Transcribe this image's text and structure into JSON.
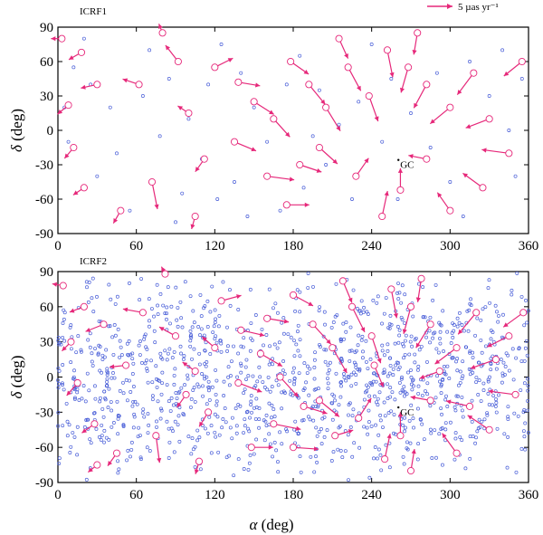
{
  "colors": {
    "vector": "#e6287a",
    "source": "#4a5fd8",
    "axis": "#000000"
  },
  "legend": {
    "label": "5 µas yr⁻¹"
  },
  "x_axis": {
    "title_symbol": "α",
    "title_unit": " (deg)"
  },
  "y_axis": {
    "title_symbol": "δ",
    "title_unit": " (deg)"
  },
  "gc_label": "GC",
  "chart_data": [
    {
      "type": "scatter",
      "title": "ICRF1",
      "xlabel": "α (deg)",
      "ylabel": "δ (deg)",
      "xlim": [
        0,
        360
      ],
      "ylim": [
        -90,
        90
      ],
      "xticks": [
        0,
        60,
        120,
        180,
        240,
        300,
        360
      ],
      "yticks": [
        90,
        60,
        30,
        0,
        -30,
        -60,
        -90
      ],
      "annotations": [
        {
          "text": "GC",
          "x": 266,
          "y": -29
        }
      ],
      "sources": [
        [
          12,
          55
        ],
        [
          25,
          40
        ],
        [
          40,
          20
        ],
        [
          8,
          -10
        ],
        [
          30,
          -40
        ],
        [
          55,
          -70
        ],
        [
          70,
          70
        ],
        [
          85,
          45
        ],
        [
          100,
          10
        ],
        [
          110,
          -25
        ],
        [
          95,
          -55
        ],
        [
          125,
          75
        ],
        [
          140,
          50
        ],
        [
          150,
          20
        ],
        [
          160,
          -10
        ],
        [
          135,
          -45
        ],
        [
          170,
          -70
        ],
        [
          185,
          65
        ],
        [
          200,
          35
        ],
        [
          215,
          5
        ],
        [
          205,
          -30
        ],
        [
          225,
          -60
        ],
        [
          240,
          75
        ],
        [
          255,
          45
        ],
        [
          270,
          15
        ],
        [
          285,
          -15
        ],
        [
          300,
          -45
        ],
        [
          315,
          60
        ],
        [
          330,
          30
        ],
        [
          345,
          0
        ],
        [
          350,
          -40
        ],
        [
          20,
          80
        ],
        [
          45,
          -20
        ],
        [
          65,
          30
        ],
        [
          90,
          -80
        ],
        [
          115,
          40
        ],
        [
          145,
          -75
        ],
        [
          175,
          40
        ],
        [
          195,
          -5
        ],
        [
          230,
          25
        ],
        [
          260,
          -60
        ],
        [
          290,
          50
        ],
        [
          310,
          -75
        ],
        [
          340,
          70
        ],
        [
          355,
          45
        ],
        [
          5,
          20
        ],
        [
          78,
          -5
        ],
        [
          122,
          -60
        ],
        [
          188,
          -50
        ],
        [
          248,
          -10
        ]
      ],
      "vectors": [
        {
          "x": 3,
          "y": 80,
          "dx": -12,
          "dy": 0
        },
        {
          "x": 18,
          "y": 68,
          "dx": -14,
          "dy": -8
        },
        {
          "x": 30,
          "y": 40,
          "dx": -18,
          "dy": -4
        },
        {
          "x": 8,
          "y": 22,
          "dx": -12,
          "dy": -10
        },
        {
          "x": 12,
          "y": -15,
          "dx": -10,
          "dy": -12
        },
        {
          "x": 20,
          "y": -50,
          "dx": -12,
          "dy": -8
        },
        {
          "x": 48,
          "y": -70,
          "dx": -8,
          "dy": -14
        },
        {
          "x": 72,
          "y": -45,
          "dx": 6,
          "dy": -30
        },
        {
          "x": 62,
          "y": 40,
          "dx": -18,
          "dy": 6
        },
        {
          "x": 92,
          "y": 60,
          "dx": -14,
          "dy": 18
        },
        {
          "x": 100,
          "y": 15,
          "dx": -12,
          "dy": 8
        },
        {
          "x": 112,
          "y": -25,
          "dx": -10,
          "dy": -14
        },
        {
          "x": 120,
          "y": 55,
          "dx": 20,
          "dy": 10
        },
        {
          "x": 138,
          "y": 42,
          "dx": 24,
          "dy": -4
        },
        {
          "x": 150,
          "y": 25,
          "dx": 22,
          "dy": -14
        },
        {
          "x": 165,
          "y": 10,
          "dx": 18,
          "dy": -20
        },
        {
          "x": 178,
          "y": 60,
          "dx": 20,
          "dy": -14
        },
        {
          "x": 192,
          "y": 40,
          "dx": 18,
          "dy": -22
        },
        {
          "x": 205,
          "y": 20,
          "dx": 16,
          "dy": -26
        },
        {
          "x": 160,
          "y": -40,
          "dx": 30,
          "dy": -4
        },
        {
          "x": 175,
          "y": -65,
          "dx": 25,
          "dy": 0
        },
        {
          "x": 200,
          "y": -15,
          "dx": 20,
          "dy": -18
        },
        {
          "x": 222,
          "y": 55,
          "dx": 14,
          "dy": -26
        },
        {
          "x": 238,
          "y": 30,
          "dx": 10,
          "dy": -28
        },
        {
          "x": 252,
          "y": 70,
          "dx": 6,
          "dy": -30
        },
        {
          "x": 268,
          "y": 55,
          "dx": -8,
          "dy": -28
        },
        {
          "x": 282,
          "y": 40,
          "dx": -14,
          "dy": -26
        },
        {
          "x": 300,
          "y": 20,
          "dx": -22,
          "dy": -18
        },
        {
          "x": 318,
          "y": 50,
          "dx": -18,
          "dy": -24
        },
        {
          "x": 330,
          "y": 10,
          "dx": -26,
          "dy": -10
        },
        {
          "x": 345,
          "y": -20,
          "dx": -30,
          "dy": 4
        },
        {
          "x": 325,
          "y": -50,
          "dx": -22,
          "dy": 16
        },
        {
          "x": 300,
          "y": -70,
          "dx": -14,
          "dy": 20
        },
        {
          "x": 282,
          "y": -25,
          "dx": -20,
          "dy": 4
        },
        {
          "x": 248,
          "y": -75,
          "dx": 6,
          "dy": 28
        },
        {
          "x": 262,
          "y": -52,
          "dx": 0,
          "dy": 24
        },
        {
          "x": 228,
          "y": -40,
          "dx": 14,
          "dy": 20
        },
        {
          "x": 215,
          "y": 80,
          "dx": 10,
          "dy": -22
        },
        {
          "x": 275,
          "y": 85,
          "dx": -4,
          "dy": -24
        },
        {
          "x": 355,
          "y": 60,
          "dx": -20,
          "dy": -16
        },
        {
          "x": 80,
          "y": 85,
          "dx": -4,
          "dy": 10
        },
        {
          "x": 105,
          "y": -75,
          "dx": -4,
          "dy": -14
        },
        {
          "x": 135,
          "y": -10,
          "dx": 24,
          "dy": -10
        },
        {
          "x": 185,
          "y": -30,
          "dx": 24,
          "dy": -8
        }
      ]
    },
    {
      "type": "scatter",
      "title": "ICRF2",
      "xlabel": "α (deg)",
      "ylabel": "δ (deg)",
      "xlim": [
        0,
        360
      ],
      "ylim": [
        -90,
        90
      ],
      "xticks": [
        0,
        60,
        120,
        180,
        240,
        300,
        360
      ],
      "yticks": [
        90,
        60,
        30,
        0,
        -30,
        -60,
        -90
      ],
      "annotations": [
        {
          "text": "GC",
          "x": 266,
          "y": -29
        }
      ],
      "sources_count": 1200,
      "vectors": [
        {
          "x": 4,
          "y": 78,
          "dx": -12,
          "dy": 2
        },
        {
          "x": 20,
          "y": 60,
          "dx": -16,
          "dy": -6
        },
        {
          "x": 35,
          "y": 45,
          "dx": -20,
          "dy": -8
        },
        {
          "x": 10,
          "y": 30,
          "dx": -10,
          "dy": -10
        },
        {
          "x": 15,
          "y": -5,
          "dx": -12,
          "dy": -14
        },
        {
          "x": 28,
          "y": -40,
          "dx": -14,
          "dy": -10
        },
        {
          "x": 45,
          "y": -65,
          "dx": -10,
          "dy": -14
        },
        {
          "x": 75,
          "y": -50,
          "dx": 4,
          "dy": -30
        },
        {
          "x": 65,
          "y": 55,
          "dx": -22,
          "dy": 4
        },
        {
          "x": 90,
          "y": 35,
          "dx": -18,
          "dy": 10
        },
        {
          "x": 105,
          "y": 5,
          "dx": -14,
          "dy": 10
        },
        {
          "x": 115,
          "y": -30,
          "dx": -10,
          "dy": -16
        },
        {
          "x": 125,
          "y": 65,
          "dx": 22,
          "dy": 6
        },
        {
          "x": 140,
          "y": 40,
          "dx": 26,
          "dy": -6
        },
        {
          "x": 155,
          "y": 20,
          "dx": 24,
          "dy": -14
        },
        {
          "x": 170,
          "y": 0,
          "dx": 20,
          "dy": -22
        },
        {
          "x": 180,
          "y": 70,
          "dx": 22,
          "dy": -12
        },
        {
          "x": 195,
          "y": 45,
          "dx": 20,
          "dy": -22
        },
        {
          "x": 210,
          "y": 25,
          "dx": 16,
          "dy": -28
        },
        {
          "x": 165,
          "y": -40,
          "dx": 30,
          "dy": -6
        },
        {
          "x": 180,
          "y": -60,
          "dx": 28,
          "dy": -2
        },
        {
          "x": 200,
          "y": -20,
          "dx": 22,
          "dy": -18
        },
        {
          "x": 225,
          "y": 60,
          "dx": 14,
          "dy": -28
        },
        {
          "x": 240,
          "y": 35,
          "dx": 10,
          "dy": -30
        },
        {
          "x": 255,
          "y": 75,
          "dx": 6,
          "dy": -32
        },
        {
          "x": 270,
          "y": 60,
          "dx": -8,
          "dy": -30
        },
        {
          "x": 285,
          "y": 45,
          "dx": -16,
          "dy": -26
        },
        {
          "x": 305,
          "y": 25,
          "dx": -24,
          "dy": -18
        },
        {
          "x": 320,
          "y": 55,
          "dx": -20,
          "dy": -24
        },
        {
          "x": 335,
          "y": 15,
          "dx": -28,
          "dy": -10
        },
        {
          "x": 350,
          "y": -15,
          "dx": -30,
          "dy": 4
        },
        {
          "x": 330,
          "y": -45,
          "dx": -24,
          "dy": 16
        },
        {
          "x": 305,
          "y": -65,
          "dx": -16,
          "dy": 22
        },
        {
          "x": 285,
          "y": -20,
          "dx": -22,
          "dy": 4
        },
        {
          "x": 250,
          "y": -70,
          "dx": 6,
          "dy": 28
        },
        {
          "x": 262,
          "y": -50,
          "dx": 0,
          "dy": 26
        },
        {
          "x": 230,
          "y": -35,
          "dx": 14,
          "dy": 22
        },
        {
          "x": 218,
          "y": 82,
          "dx": 10,
          "dy": -24
        },
        {
          "x": 278,
          "y": 84,
          "dx": -4,
          "dy": -26
        },
        {
          "x": 356,
          "y": 55,
          "dx": -22,
          "dy": -16
        },
        {
          "x": 82,
          "y": 88,
          "dx": -4,
          "dy": 8
        },
        {
          "x": 108,
          "y": -72,
          "dx": -4,
          "dy": -14
        },
        {
          "x": 138,
          "y": -5,
          "dx": 26,
          "dy": -10
        },
        {
          "x": 188,
          "y": -25,
          "dx": 26,
          "dy": -8
        },
        {
          "x": 52,
          "y": 10,
          "dx": -18,
          "dy": -2
        },
        {
          "x": 98,
          "y": -15,
          "dx": -10,
          "dy": -14
        },
        {
          "x": 148,
          "y": -60,
          "dx": 24,
          "dy": 0
        },
        {
          "x": 212,
          "y": -50,
          "dx": 20,
          "dy": 6
        },
        {
          "x": 242,
          "y": 10,
          "dx": 10,
          "dy": -24
        },
        {
          "x": 292,
          "y": 5,
          "dx": -22,
          "dy": -8
        },
        {
          "x": 315,
          "y": -25,
          "dx": -26,
          "dy": 6
        },
        {
          "x": 345,
          "y": 35,
          "dx": -24,
          "dy": -12
        },
        {
          "x": 270,
          "y": -80,
          "dx": 4,
          "dy": 24
        },
        {
          "x": 160,
          "y": 50,
          "dx": 24,
          "dy": -4
        },
        {
          "x": 120,
          "y": 25,
          "dx": -14,
          "dy": 12
        },
        {
          "x": 30,
          "y": -75,
          "dx": -10,
          "dy": -8
        }
      ]
    }
  ]
}
